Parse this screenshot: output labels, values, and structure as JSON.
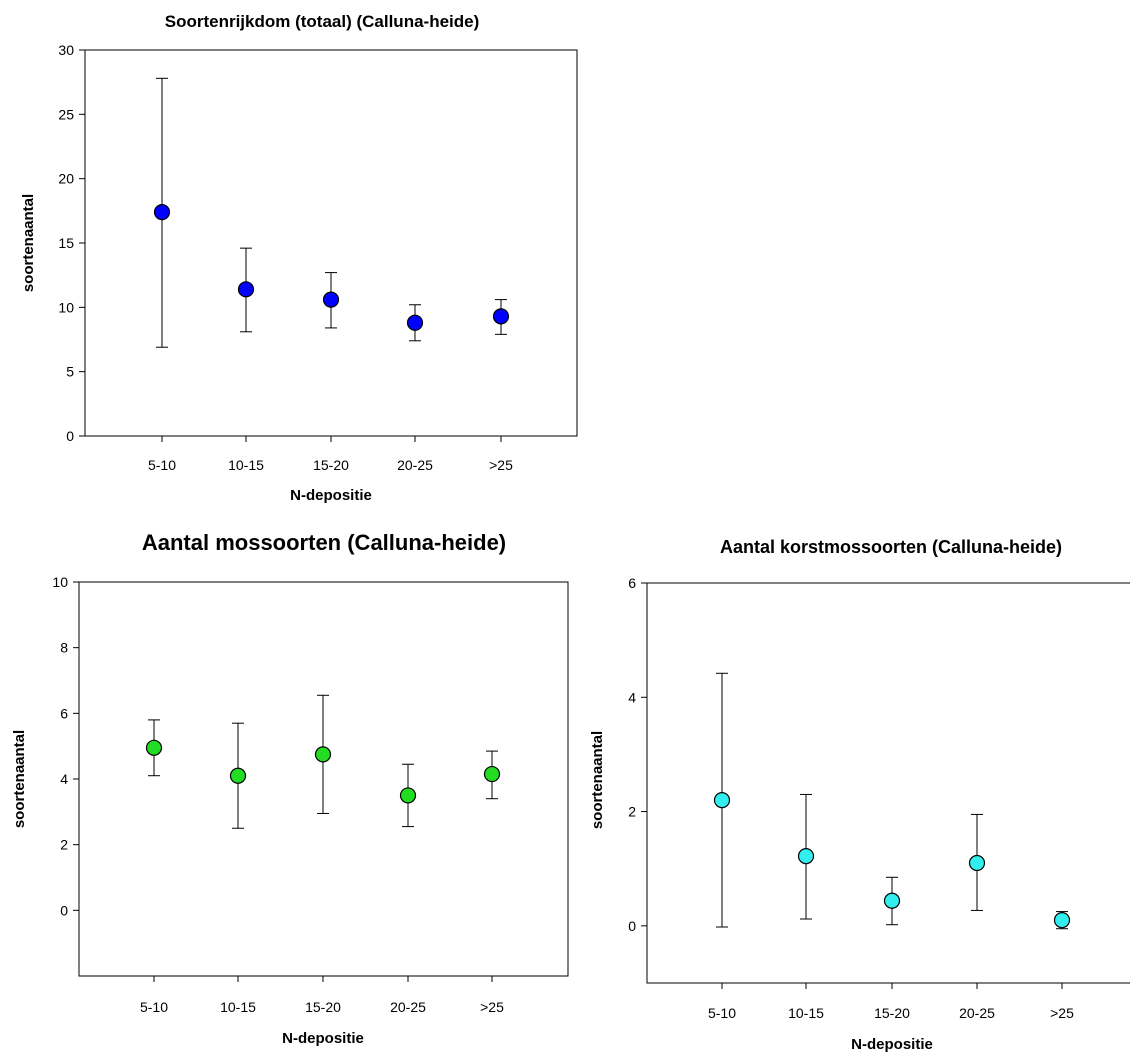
{
  "chart_data": [
    {
      "type": "scatter",
      "title": "Soortenrijkdom (totaal) (Calluna-heide)",
      "xlabel": "N-depositie",
      "ylabel": "soortenaantal",
      "categories": [
        "5-10",
        "10-15",
        "15-20",
        "20-25",
        ">25"
      ],
      "values": [
        17.4,
        11.4,
        10.6,
        8.8,
        9.3
      ],
      "error_low": [
        6.9,
        8.1,
        8.4,
        7.4,
        7.9
      ],
      "error_high": [
        27.8,
        14.6,
        12.7,
        10.2,
        10.6
      ],
      "ylim": [
        0,
        30
      ],
      "yticks": [
        "0",
        "5",
        "10",
        "15",
        "20",
        "25",
        "30"
      ],
      "ytick_values": [
        0,
        5,
        10,
        15,
        20,
        25,
        30
      ],
      "marker_color": "#0000ff"
    },
    {
      "type": "scatter",
      "title": "Aantal mossoorten (Calluna-heide)",
      "xlabel": "N-depositie",
      "ylabel": "soortenaantal",
      "categories": [
        "5-10",
        "10-15",
        "15-20",
        "20-25",
        ">25"
      ],
      "values": [
        4.95,
        4.1,
        4.75,
        3.5,
        4.15
      ],
      "error_low": [
        4.1,
        2.5,
        2.95,
        2.55,
        3.4
      ],
      "error_high": [
        5.8,
        5.7,
        6.55,
        4.45,
        4.85
      ],
      "ylim": [
        -2,
        10
      ],
      "yticks": [
        "0",
        "2",
        "4",
        "6",
        "8",
        "10"
      ],
      "ytick_values": [
        0,
        2,
        4,
        6,
        8,
        10
      ],
      "marker_color": "#22dd22"
    },
    {
      "type": "scatter",
      "title": "Aantal korstmossoorten (Calluna-heide)",
      "xlabel": "N-depositie",
      "ylabel": "soortenaantal",
      "categories": [
        "5-10",
        "10-15",
        "15-20",
        "20-25",
        ">25"
      ],
      "values": [
        2.2,
        1.22,
        0.44,
        1.1,
        0.1
      ],
      "error_low": [
        -0.02,
        0.12,
        0.02,
        0.27,
        -0.05
      ],
      "error_high": [
        4.42,
        2.3,
        0.85,
        1.95,
        0.25
      ],
      "ylim": [
        -1,
        6
      ],
      "yticks": [
        "0",
        "2",
        "4",
        "6"
      ],
      "ytick_values": [
        0,
        2,
        4,
        6
      ],
      "marker_color": "#33eeee"
    }
  ]
}
